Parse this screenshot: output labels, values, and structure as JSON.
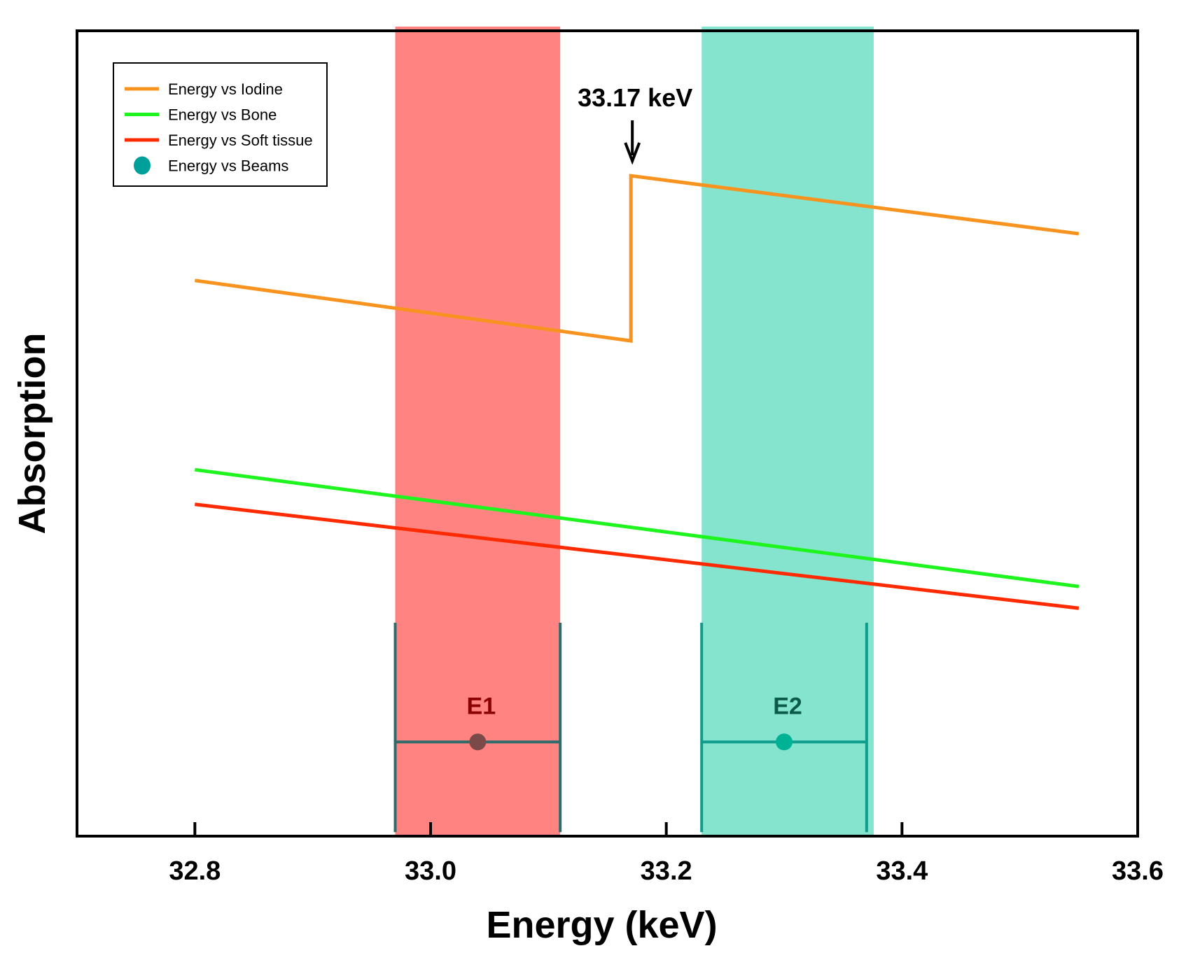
{
  "chart_data": {
    "type": "line",
    "xlabel": "Energy (keV)",
    "ylabel": "Absorption",
    "xlim": [
      32.7,
      33.6
    ],
    "ylim": [
      0,
      1
    ],
    "x_ticks": [
      32.8,
      33.0,
      33.2,
      33.4,
      33.6
    ],
    "x_tick_labels": [
      "32.8",
      "33.0",
      "33.2",
      "33.4",
      "33.6"
    ],
    "y_ticks_shown": false,
    "grid": false,
    "legend_position": "top-left",
    "series": [
      {
        "name": "Energy vs Iodine",
        "color": "#f7931e",
        "points": [
          [
            32.8,
            0.69
          ],
          [
            33.17,
            0.615
          ],
          [
            33.17,
            0.82
          ],
          [
            33.55,
            0.748
          ]
        ]
      },
      {
        "name": "Energy vs Bone",
        "color": "#1ef51e",
        "points": [
          [
            32.8,
            0.455
          ],
          [
            33.55,
            0.31
          ]
        ]
      },
      {
        "name": "Energy vs Soft tissue",
        "color": "#ff2a00",
        "points": [
          [
            32.8,
            0.412
          ],
          [
            33.55,
            0.283
          ]
        ]
      }
    ],
    "beams": {
      "name": "Energy vs Beams",
      "legend_color": "#00a09a",
      "points": [
        {
          "label": "E1",
          "x": 33.04,
          "xerr_low": 32.97,
          "xerr_high": 33.11,
          "y": 0.117,
          "color": "#7b4a48",
          "bar_color": "#2e6b6b",
          "label_color": "#8b0000"
        },
        {
          "label": "E2",
          "x": 33.3,
          "xerr_low": 33.23,
          "xerr_high": 33.37,
          "y": 0.117,
          "color": "#00b294",
          "bar_color": "#0f9c8c",
          "label_color": "#0b5a4a"
        }
      ]
    },
    "bands": [
      {
        "x_start": 32.97,
        "x_end": 33.11,
        "color": "#ff5a55",
        "opacity": 0.75
      },
      {
        "x_start": 33.23,
        "x_end": 33.376,
        "color": "#5cdbbd",
        "opacity": 0.75
      }
    ],
    "annotation": {
      "text": "33.17 keV",
      "x": 33.17
    }
  }
}
